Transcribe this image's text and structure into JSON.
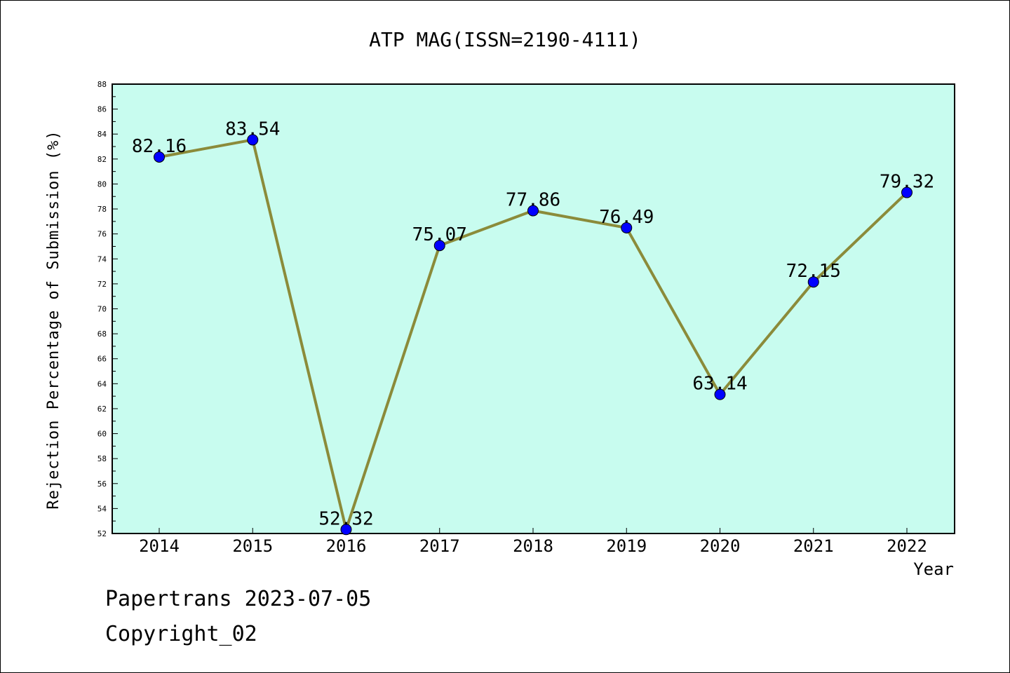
{
  "chart_data": {
    "type": "line",
    "title": "ATP MAG(ISSN=2190-4111)",
    "xlabel": "Year",
    "ylabel": "Rejection Percentage of Submission (%)",
    "categories": [
      "2014",
      "2015",
      "2016",
      "2017",
      "2018",
      "2019",
      "2020",
      "2021",
      "2022"
    ],
    "values": [
      82.16,
      83.54,
      52.32,
      75.07,
      77.86,
      76.49,
      63.14,
      72.15,
      79.32
    ],
    "data_labels": [
      "82.16",
      "83.54",
      "52.32",
      "75.07",
      "77.86",
      "76.49",
      "63.14",
      "72.15",
      "79.32"
    ],
    "ylim": [
      52,
      88
    ],
    "yticks": [
      "52",
      "54",
      "56",
      "58",
      "60",
      "62",
      "64",
      "66",
      "68",
      "70",
      "72",
      "74",
      "76",
      "78",
      "80",
      "82",
      "84",
      "86",
      "88"
    ],
    "grid": false,
    "colors": {
      "plot_bg": "#c8fcef",
      "line": "#8b8b3a",
      "marker": "#0000ff"
    }
  },
  "footer": {
    "line1": "Papertrans 2023-07-05",
    "line2": "Copyright_02"
  }
}
